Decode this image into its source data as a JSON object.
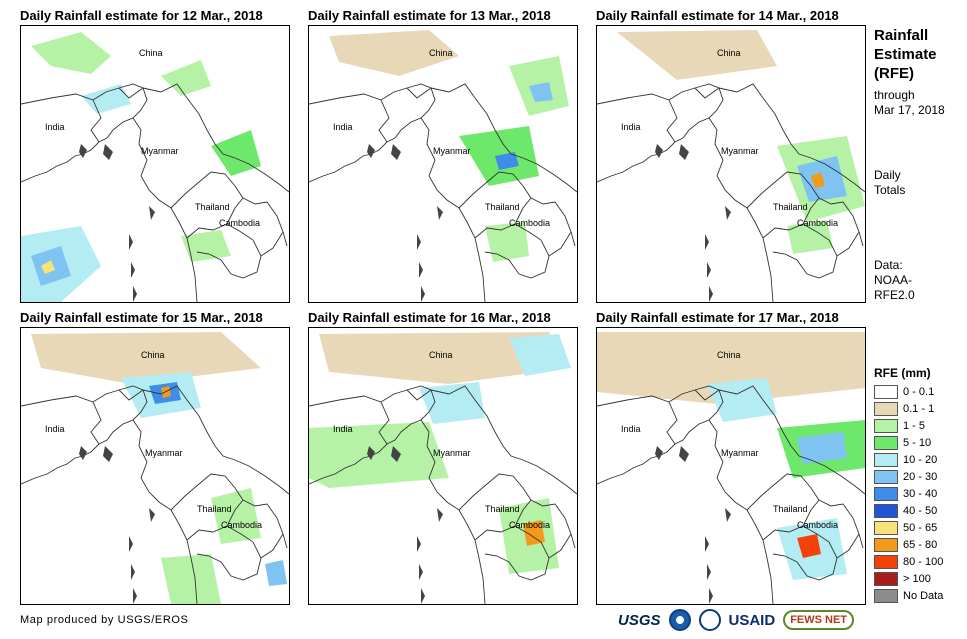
{
  "panels": [
    {
      "title": "Daily Rainfall estimate for 12 Mar., 2018"
    },
    {
      "title": "Daily Rainfall estimate for 13 Mar., 2018"
    },
    {
      "title": "Daily Rainfall estimate for 14 Mar., 2018"
    },
    {
      "title": "Daily Rainfall estimate for 15 Mar., 2018"
    },
    {
      "title": "Daily Rainfall estimate for 16 Mar., 2018"
    },
    {
      "title": "Daily Rainfall estimate for 17 Mar., 2018"
    }
  ],
  "map_labels": {
    "china": "China",
    "india": "India",
    "myanmar": "Myanmar",
    "thailand": "Thailand",
    "cambodia": "Cambodia"
  },
  "sidebar": {
    "title_line1": "Rainfall",
    "title_line2": "Estimate",
    "title_line3": "(RFE)",
    "through": "through",
    "date": "Mar 17, 2018",
    "daily": "Daily",
    "totals": "Totals",
    "data": "Data:",
    "source1": "NOAA-",
    "source2": "RFE2.0"
  },
  "legend": {
    "title": "RFE (mm)",
    "items": [
      {
        "label": "0 - 0.1",
        "color": "#ffffff"
      },
      {
        "label": "0.1 - 1",
        "color": "#e9d8b8"
      },
      {
        "label": "1 - 5",
        "color": "#b6f2a6"
      },
      {
        "label": "5 - 10",
        "color": "#6ee86a"
      },
      {
        "label": "10 - 20",
        "color": "#b4ecf4"
      },
      {
        "label": "20 - 30",
        "color": "#7ec3f2"
      },
      {
        "label": "30 - 40",
        "color": "#3e8ee8"
      },
      {
        "label": "40 - 50",
        "color": "#1f55d6"
      },
      {
        "label": "50 - 65",
        "color": "#f7e37a"
      },
      {
        "label": "65 - 80",
        "color": "#f49a1a"
      },
      {
        "label": "80 - 100",
        "color": "#f2420a"
      },
      {
        "label": "> 100",
        "color": "#a81c1c"
      },
      {
        "label": "No Data",
        "color": "#8c8c8c"
      }
    ]
  },
  "footer": {
    "credit": "Map produced by USGS/EROS",
    "usgs": "USGS",
    "usaid": "USAID",
    "fews": "FEWS NET"
  }
}
